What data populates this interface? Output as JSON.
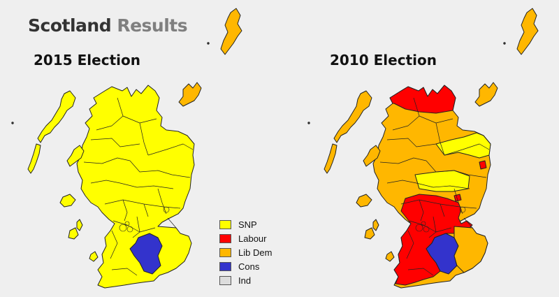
{
  "header": {
    "title_main": "Scotland",
    "title_accent": "Results"
  },
  "maps": [
    {
      "id": "map-2015",
      "label": "2015 Election"
    },
    {
      "id": "map-2010",
      "label": "2010 Election"
    }
  ],
  "legend": [
    {
      "label": "SNP",
      "color": "#ffff00"
    },
    {
      "label": "Labour",
      "color": "#ff0000"
    },
    {
      "label": "Lib Dem",
      "color": "#ffb700"
    },
    {
      "label": "Cons",
      "color": "#3333cc"
    },
    {
      "label": "Ind",
      "color": "#dddddd"
    }
  ],
  "colors": {
    "snp": "#ffff00",
    "labour": "#ff0000",
    "libdem": "#ffb700",
    "cons": "#3333cc",
    "border": "#222222"
  }
}
